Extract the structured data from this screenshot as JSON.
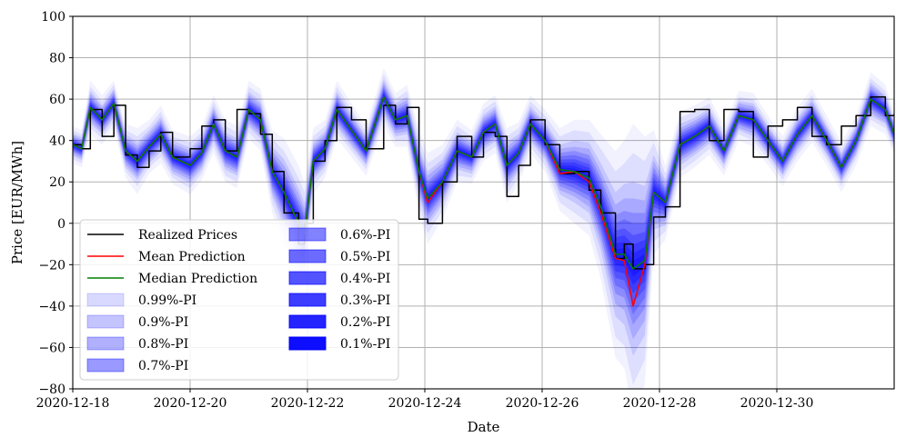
{
  "chart_data": {
    "type": "line",
    "title": "",
    "xlabel": "Date",
    "ylabel": "Price [EUR/MWh]",
    "ylim": [
      -80,
      100
    ],
    "yticks": [
      -80,
      -60,
      -40,
      -20,
      0,
      20,
      40,
      60,
      80,
      100
    ],
    "ytick_labels": [
      "−80",
      "−60",
      "−40",
      "−20",
      "0",
      "20",
      "40",
      "60",
      "80",
      "100"
    ],
    "xlim_days": [
      0,
      14
    ],
    "xticks": [
      {
        "day": 0,
        "label": "2020-12-18"
      },
      {
        "day": 2,
        "label": "2020-12-20"
      },
      {
        "day": 4,
        "label": "2020-12-22"
      },
      {
        "day": 6,
        "label": "2020-12-24"
      },
      {
        "day": 8,
        "label": "2020-12-26"
      },
      {
        "day": 10,
        "label": "2020-12-28"
      },
      {
        "day": 12,
        "label": "2020-12-30"
      }
    ],
    "grid": true,
    "legend_position": "lower-left",
    "band_color": "#0000ff",
    "realized_color": "#000000",
    "mean_color": "#ff0000",
    "median_color": "#008000",
    "keypoints_day": [
      0,
      0.15,
      0.3,
      0.5,
      0.7,
      0.9,
      1.1,
      1.3,
      1.5,
      1.7,
      2.0,
      2.2,
      2.4,
      2.6,
      2.8,
      3.0,
      3.2,
      3.4,
      3.6,
      3.85,
      3.95,
      4.1,
      4.3,
      4.5,
      4.75,
      5.0,
      5.3,
      5.5,
      5.7,
      5.9,
      6.05,
      6.3,
      6.55,
      6.8,
      7.0,
      7.2,
      7.4,
      7.6,
      7.8,
      8.05,
      8.3,
      8.55,
      8.8,
      9.0,
      9.25,
      9.4,
      9.55,
      9.75,
      9.9,
      10.1,
      10.35,
      10.6,
      10.85,
      11.1,
      11.35,
      11.6,
      11.85,
      12.1,
      12.35,
      12.6,
      12.85,
      13.1,
      13.35,
      13.6,
      13.85,
      14.0
    ],
    "series": [
      {
        "name": "Realized Prices",
        "values": [
          38,
          36,
          55,
          42,
          57,
          33,
          27,
          35,
          44,
          32,
          36,
          47,
          50,
          35,
          55,
          53,
          43,
          25,
          5,
          -10,
          0,
          30,
          40,
          56,
          50,
          36,
          57,
          48,
          56,
          2,
          0,
          20,
          42,
          32,
          44,
          42,
          13,
          28,
          50,
          38,
          24,
          25,
          16,
          5,
          -17,
          -10,
          -22,
          -20,
          3,
          8,
          54,
          55,
          40,
          55,
          54,
          32,
          47,
          50,
          56,
          42,
          38,
          47,
          52,
          61,
          52,
          53
        ]
      },
      {
        "name": "Mean Prediction",
        "values": [
          38,
          36,
          56,
          50,
          58,
          35,
          30,
          37,
          43,
          32,
          28,
          34,
          48,
          35,
          32,
          55,
          50,
          25,
          15,
          0,
          -5,
          30,
          36,
          55,
          45,
          35,
          61,
          50,
          52,
          25,
          10,
          20,
          35,
          32,
          44,
          48,
          28,
          34,
          48,
          40,
          24,
          25,
          20,
          5,
          -17,
          -18,
          -40,
          -20,
          15,
          10,
          38,
          42,
          47,
          35,
          52,
          50,
          40,
          30,
          43,
          52,
          40,
          27,
          40,
          60,
          55,
          43
        ]
      },
      {
        "name": "Median Prediction",
        "values": [
          38,
          36,
          56,
          50,
          58,
          35,
          30,
          37,
          43,
          32,
          28,
          34,
          48,
          35,
          32,
          55,
          50,
          25,
          15,
          0,
          -5,
          30,
          36,
          55,
          45,
          35,
          61,
          50,
          52,
          25,
          12,
          20,
          35,
          32,
          44,
          48,
          28,
          34,
          48,
          40,
          26,
          25,
          22,
          8,
          -15,
          -15,
          -22,
          -18,
          15,
          10,
          38,
          42,
          47,
          35,
          52,
          50,
          40,
          30,
          43,
          52,
          40,
          27,
          40,
          60,
          55,
          43
        ]
      }
    ],
    "interval_halfwidths": [
      {
        "name": "0.99%-PI",
        "values": [
          9,
          9,
          13,
          12,
          11,
          13,
          16,
          13,
          14,
          13,
          14,
          13,
          14,
          15,
          15,
          14,
          15,
          20,
          26,
          28,
          25,
          16,
          14,
          14,
          13,
          12,
          14,
          13,
          15,
          20,
          22,
          18,
          15,
          13,
          14,
          14,
          18,
          15,
          14,
          15,
          20,
          25,
          28,
          35,
          50,
          55,
          70,
          60,
          30,
          18,
          16,
          15,
          14,
          12,
          12,
          13,
          12,
          12,
          13,
          13,
          12,
          12,
          12,
          13,
          12,
          10
        ]
      },
      {
        "name": "0.9%-PI",
        "values": [
          7,
          7,
          10,
          9,
          9,
          10,
          12,
          10,
          11,
          10,
          11,
          10,
          11,
          12,
          12,
          11,
          12,
          16,
          20,
          22,
          20,
          12,
          11,
          11,
          10,
          9,
          11,
          10,
          12,
          16,
          17,
          14,
          12,
          10,
          11,
          11,
          14,
          12,
          11,
          12,
          16,
          20,
          22,
          28,
          40,
          44,
          56,
          48,
          24,
          14,
          13,
          12,
          11,
          9,
          9,
          10,
          9,
          9,
          10,
          10,
          9,
          9,
          9,
          10,
          9,
          8
        ]
      },
      {
        "name": "0.8%-PI",
        "values": [
          5.5,
          5.5,
          8,
          7,
          7,
          8,
          9,
          8,
          8.5,
          8,
          8.5,
          8,
          8.5,
          9,
          9,
          8.5,
          9,
          12,
          16,
          17,
          15,
          9,
          8.5,
          8.5,
          8,
          7,
          8.5,
          8,
          9,
          12,
          13,
          11,
          9,
          8,
          8.5,
          8.5,
          11,
          9,
          8.5,
          9,
          12,
          15,
          17,
          21,
          30,
          34,
          42,
          36,
          18,
          11,
          10,
          9,
          8.5,
          7,
          7,
          8,
          7,
          7,
          8,
          8,
          7,
          7,
          7,
          8,
          7,
          6
        ]
      },
      {
        "name": "0.7%-PI",
        "values": [
          4.5,
          4.5,
          6.5,
          6,
          6,
          6.5,
          7.5,
          6.5,
          7,
          6.5,
          7,
          6.5,
          7,
          7.5,
          7.5,
          7,
          7.5,
          10,
          13,
          14,
          12,
          7.5,
          7,
          7,
          6.5,
          6,
          7,
          6.5,
          7.5,
          10,
          11,
          9,
          7.5,
          6.5,
          7,
          7,
          9,
          7.5,
          7,
          7.5,
          10,
          12,
          14,
          17,
          24,
          27,
          34,
          29,
          15,
          9,
          8,
          7.5,
          7,
          6,
          6,
          6.5,
          6,
          6,
          6.5,
          6.5,
          6,
          6,
          6,
          6.5,
          6,
          5
        ]
      },
      {
        "name": "0.6%-PI",
        "values": [
          3.5,
          3.5,
          5,
          4.5,
          4.5,
          5,
          6,
          5,
          5.5,
          5,
          5.5,
          5,
          5.5,
          6,
          6,
          5.5,
          6,
          8,
          10,
          11,
          10,
          6,
          5.5,
          5.5,
          5,
          4.5,
          5.5,
          5,
          6,
          8,
          8.5,
          7,
          6,
          5,
          5.5,
          5.5,
          7,
          6,
          5.5,
          6,
          8,
          10,
          11,
          14,
          19,
          21,
          27,
          23,
          12,
          7,
          6.5,
          6,
          5.5,
          4.5,
          4.5,
          5,
          4.5,
          4.5,
          5,
          5,
          4.5,
          4.5,
          4.5,
          5,
          4.5,
          4
        ]
      },
      {
        "name": "0.5%-PI",
        "values": [
          2.8,
          2.8,
          4,
          3.6,
          3.6,
          4,
          4.8,
          4,
          4.4,
          4,
          4.4,
          4,
          4.4,
          4.8,
          4.8,
          4.4,
          4.8,
          6.4,
          8,
          8.8,
          8,
          4.8,
          4.4,
          4.4,
          4,
          3.6,
          4.4,
          4,
          4.8,
          6.4,
          6.8,
          5.6,
          4.8,
          4,
          4.4,
          4.4,
          5.6,
          4.8,
          4.4,
          4.8,
          6.4,
          8,
          8.8,
          11,
          15,
          17,
          22,
          18,
          9.6,
          5.6,
          5.2,
          4.8,
          4.4,
          3.6,
          3.6,
          4,
          3.6,
          3.6,
          4,
          4,
          3.6,
          3.6,
          3.6,
          4,
          3.6,
          3.2
        ]
      },
      {
        "name": "0.4%-PI",
        "values": [
          2.2,
          2.2,
          3,
          2.8,
          2.8,
          3,
          3.6,
          3,
          3.3,
          3,
          3.3,
          3,
          3.3,
          3.6,
          3.6,
          3.3,
          3.6,
          4.8,
          6,
          6.6,
          6,
          3.6,
          3.3,
          3.3,
          3,
          2.8,
          3.3,
          3,
          3.6,
          4.8,
          5.1,
          4.2,
          3.6,
          3,
          3.3,
          3.3,
          4.2,
          3.6,
          3.3,
          3.6,
          4.8,
          6,
          6.6,
          8.4,
          11.4,
          12.6,
          16.2,
          13.8,
          7.2,
          4.2,
          3.9,
          3.6,
          3.3,
          2.8,
          2.8,
          3,
          2.8,
          2.8,
          3,
          3,
          2.8,
          2.8,
          2.8,
          3,
          2.8,
          2.4
        ]
      },
      {
        "name": "0.3%-PI",
        "values": [
          1.6,
          1.6,
          2.2,
          2,
          2,
          2.2,
          2.6,
          2.2,
          2.4,
          2.2,
          2.4,
          2.2,
          2.4,
          2.6,
          2.6,
          2.4,
          2.6,
          3.4,
          4.4,
          4.8,
          4.4,
          2.6,
          2.4,
          2.4,
          2.2,
          2,
          2.4,
          2.2,
          2.6,
          3.4,
          3.7,
          3,
          2.6,
          2.2,
          2.4,
          2.4,
          3,
          2.6,
          2.4,
          2.6,
          3.4,
          4.4,
          4.8,
          6,
          8.2,
          9.2,
          11.8,
          10,
          5.2,
          3,
          2.8,
          2.6,
          2.4,
          2,
          2,
          2.2,
          2,
          2,
          2.2,
          2.2,
          2,
          2,
          2,
          2.2,
          2,
          1.8
        ]
      },
      {
        "name": "0.2%-PI",
        "values": [
          1,
          1,
          1.4,
          1.3,
          1.3,
          1.4,
          1.7,
          1.4,
          1.6,
          1.4,
          1.6,
          1.4,
          1.6,
          1.7,
          1.7,
          1.6,
          1.7,
          2.2,
          2.8,
          3.1,
          2.8,
          1.7,
          1.6,
          1.6,
          1.4,
          1.3,
          1.6,
          1.4,
          1.7,
          2.2,
          2.4,
          2,
          1.7,
          1.4,
          1.6,
          1.6,
          2,
          1.7,
          1.6,
          1.7,
          2.2,
          2.8,
          3.1,
          3.9,
          5.3,
          6,
          7.6,
          6.5,
          3.4,
          2,
          1.8,
          1.7,
          1.6,
          1.3,
          1.3,
          1.4,
          1.3,
          1.3,
          1.4,
          1.4,
          1.3,
          1.3,
          1.3,
          1.4,
          1.3,
          1.1
        ]
      },
      {
        "name": "0.1%-PI",
        "values": [
          0.5,
          0.5,
          0.7,
          0.6,
          0.6,
          0.7,
          0.8,
          0.7,
          0.8,
          0.7,
          0.8,
          0.7,
          0.8,
          0.8,
          0.8,
          0.8,
          0.8,
          1.1,
          1.4,
          1.5,
          1.4,
          0.8,
          0.8,
          0.8,
          0.7,
          0.6,
          0.8,
          0.7,
          0.8,
          1.1,
          1.2,
          1,
          0.8,
          0.7,
          0.8,
          0.8,
          1,
          0.8,
          0.8,
          0.8,
          1.1,
          1.4,
          1.5,
          1.9,
          2.6,
          3,
          3.8,
          3.2,
          1.7,
          1,
          0.9,
          0.8,
          0.8,
          0.6,
          0.6,
          0.7,
          0.6,
          0.6,
          0.7,
          0.7,
          0.6,
          0.6,
          0.6,
          0.7,
          0.6,
          0.5
        ]
      }
    ],
    "legend": {
      "entries": [
        {
          "label": "Realized Prices",
          "kind": "line",
          "color": "#000000"
        },
        {
          "label": "Mean Prediction",
          "kind": "line",
          "color": "#ff0000"
        },
        {
          "label": "Median Prediction",
          "kind": "line",
          "color": "#008000"
        },
        {
          "label": "0.99%-PI",
          "kind": "band",
          "alpha": 0.15
        },
        {
          "label": "0.9%-PI",
          "kind": "band",
          "alpha": 0.23
        },
        {
          "label": "0.8%-PI",
          "kind": "band",
          "alpha": 0.31
        },
        {
          "label": "0.7%-PI",
          "kind": "band",
          "alpha": 0.4
        },
        {
          "label": "0.6%-PI",
          "kind": "band",
          "alpha": 0.49
        },
        {
          "label": "0.5%-PI",
          "kind": "band",
          "alpha": 0.58
        },
        {
          "label": "0.4%-PI",
          "kind": "band",
          "alpha": 0.67
        },
        {
          "label": "0.3%-PI",
          "kind": "band",
          "alpha": 0.76
        },
        {
          "label": "0.2%-PI",
          "kind": "band",
          "alpha": 0.86
        },
        {
          "label": "0.1%-PI",
          "kind": "band",
          "alpha": 0.95
        }
      ]
    }
  }
}
